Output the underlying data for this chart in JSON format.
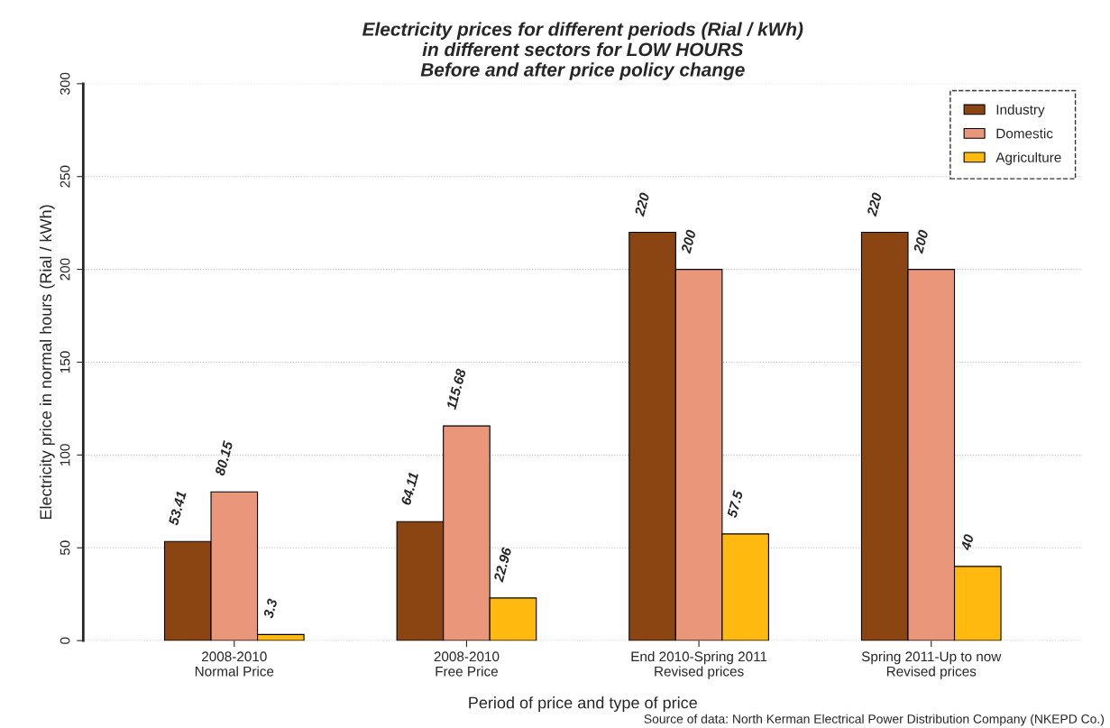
{
  "chart_data": {
    "type": "bar",
    "title": "Electricity prices for different periods (Rial / kWh)\nin different sectors for LOW HOURS\nBefore and after price policy change",
    "xlabel": "Period of price and type of price",
    "ylabel": "Electricity price in normal hours (Rial / kWh)",
    "categories": [
      "2008-2010\nNormal Price",
      "2008-2010\nFree Price",
      "End 2010-Spring 2011\nRevised prices",
      "Spring 2011-Up to now\nRevised prices"
    ],
    "series": [
      {
        "name": "Industry",
        "color": "#8b4513",
        "values": [
          53.41,
          64.11,
          220,
          220
        ]
      },
      {
        "name": "Domestic",
        "color": "#e9967a",
        "values": [
          80.15,
          115.68,
          200,
          200
        ]
      },
      {
        "name": "Agriculture",
        "color": "#ffb90f",
        "values": [
          3.3,
          22.96,
          57.5,
          40
        ]
      }
    ],
    "ylim": [
      0,
      300
    ],
    "yticks": [
      0,
      50,
      100,
      150,
      200,
      250,
      300
    ],
    "grid": "y",
    "legend": "top right",
    "data_labels": true,
    "annotations": [
      "Source of data: North Kerman Electrical Power Distribution Company (NKEPD Co.)"
    ]
  }
}
